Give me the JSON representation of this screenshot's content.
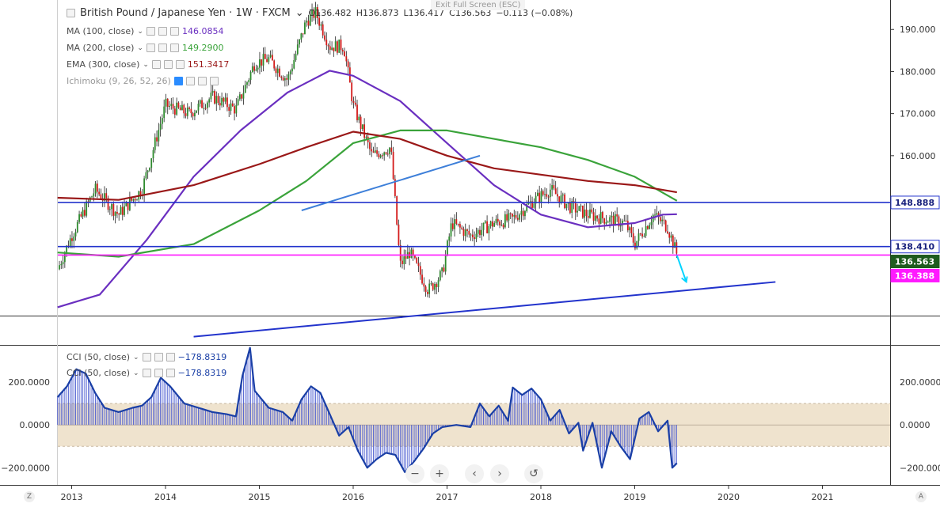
{
  "header": {
    "symbol": "British Pound / Japanese Yen · 1W · FXCM",
    "ohlc": [
      "O136.482",
      "H136.873",
      "L136.417",
      "C136.563",
      "−0.113 (−0.08%)"
    ],
    "exit_fullscreen": "Exit Full Screen (ESC)"
  },
  "indicators": [
    {
      "label": "MA (100, close)",
      "value": "146.0854",
      "color": "#6a2fc0"
    },
    {
      "label": "MA (200, close)",
      "value": "149.2900",
      "color": "#3aa33a"
    },
    {
      "label": "EMA (300, close)",
      "value": "151.3417",
      "color": "#9a1818"
    },
    {
      "label": "Ichimoku (9, 26, 52, 26)",
      "value": "",
      "color": "#888888"
    }
  ],
  "cci_legends": [
    {
      "label": "CCI (50, close)",
      "value": "−178.8319"
    },
    {
      "label": "CCI (50, close)",
      "value": "−178.8319"
    }
  ],
  "price_badges": [
    {
      "value": "148.888",
      "bg": "#ffffff",
      "fg": "#1a237e",
      "border": "#2233cc"
    },
    {
      "value": "138.410",
      "bg": "#ffffff",
      "fg": "#1a237e",
      "border": "#2233cc"
    },
    {
      "value": "136.563",
      "bg": "#1e5b1e",
      "fg": "#ffffff",
      "border": "#1e5b1e"
    },
    {
      "value": "136.388",
      "bg": "#ff19ff",
      "fg": "#ffffff",
      "border": "#ff19ff"
    }
  ],
  "nav": {
    "zoom_out": "−",
    "zoom_in": "+",
    "prev": "‹",
    "next": "›",
    "reset": "↺"
  },
  "corners": {
    "left": "Z",
    "right": "A"
  },
  "chart_data": [
    {
      "type": "candlestick",
      "title": "British Pound / Japanese Yen · 1W · FXCM",
      "x_ticks": [
        "2013",
        "2014",
        "2015",
        "2016",
        "2017",
        "2018",
        "2019",
        "2020",
        "2021"
      ],
      "y_ticks": [
        "190.000",
        "180.000",
        "170.000",
        "160.000",
        "138.410"
      ],
      "ylim": [
        122,
        197
      ],
      "close_path": [
        [
          2012.85,
          133
        ],
        [
          2013.0,
          141
        ],
        [
          2013.25,
          152
        ],
        [
          2013.5,
          146
        ],
        [
          2013.75,
          152
        ],
        [
          2014.0,
          172
        ],
        [
          2014.25,
          170
        ],
        [
          2014.5,
          174
        ],
        [
          2014.75,
          171
        ],
        [
          2014.95,
          182
        ],
        [
          2015.1,
          183
        ],
        [
          2015.3,
          178
        ],
        [
          2015.5,
          192
        ],
        [
          2015.6,
          194
        ],
        [
          2015.75,
          186
        ],
        [
          2015.9,
          186
        ],
        [
          2016.0,
          172
        ],
        [
          2016.2,
          160
        ],
        [
          2016.4,
          162
        ],
        [
          2016.5,
          134
        ],
        [
          2016.6,
          137
        ],
        [
          2016.8,
          128
        ],
        [
          2016.95,
          132
        ],
        [
          2017.05,
          144
        ],
        [
          2017.25,
          141
        ],
        [
          2017.5,
          144
        ],
        [
          2017.7,
          145
        ],
        [
          2017.9,
          149
        ],
        [
          2018.1,
          152
        ],
        [
          2018.3,
          148
        ],
        [
          2018.5,
          146
        ],
        [
          2018.7,
          145
        ],
        [
          2018.9,
          144
        ],
        [
          2019.0,
          139
        ],
        [
          2019.2,
          146
        ],
        [
          2019.35,
          143
        ],
        [
          2019.45,
          136.56
        ]
      ],
      "series": [
        {
          "name": "MA (100, close)",
          "color": "#6a2fc0",
          "points": [
            [
              2012.85,
              124
            ],
            [
              2013.3,
              127
            ],
            [
              2013.8,
              140
            ],
            [
              2014.3,
              155
            ],
            [
              2014.8,
              166
            ],
            [
              2015.3,
              175
            ],
            [
              2015.75,
              180.2
            ],
            [
              2016.0,
              179
            ],
            [
              2016.5,
              173
            ],
            [
              2017.0,
              163
            ],
            [
              2017.5,
              153
            ],
            [
              2018.0,
              146
            ],
            [
              2018.5,
              143
            ],
            [
              2019.0,
              144
            ],
            [
              2019.3,
              146
            ],
            [
              2019.45,
              146.1
            ]
          ]
        },
        {
          "name": "MA (200, close)",
          "color": "#3aa33a",
          "points": [
            [
              2012.85,
              137
            ],
            [
              2013.5,
              136
            ],
            [
              2014.3,
              139
            ],
            [
              2015.0,
              147
            ],
            [
              2015.5,
              154
            ],
            [
              2016.0,
              163
            ],
            [
              2016.5,
              166
            ],
            [
              2017.0,
              166
            ],
            [
              2017.5,
              164
            ],
            [
              2018.0,
              162
            ],
            [
              2018.5,
              159
            ],
            [
              2019.0,
              155
            ],
            [
              2019.45,
              149.3
            ]
          ]
        },
        {
          "name": "EMA (300, close)",
          "color": "#9a1818",
          "points": [
            [
              2012.85,
              150
            ],
            [
              2013.5,
              149.5
            ],
            [
              2014.3,
              153
            ],
            [
              2015.0,
              158
            ],
            [
              2015.5,
              162
            ],
            [
              2016.0,
              165.7
            ],
            [
              2016.5,
              164
            ],
            [
              2017.0,
              160
            ],
            [
              2017.5,
              157
            ],
            [
              2018.0,
              155.5
            ],
            [
              2018.5,
              154
            ],
            [
              2019.0,
              153
            ],
            [
              2019.45,
              151.3
            ]
          ]
        }
      ],
      "hlines": [
        {
          "y": 148.888,
          "color": "#2233cc"
        },
        {
          "y": 138.41,
          "color": "#2233cc"
        },
        {
          "y": 136.388,
          "color": "#ff19ff"
        }
      ],
      "trendlines": [
        {
          "from": [
            2014.3,
            117
          ],
          "to": [
            2020.5,
            130
          ],
          "color": "#2233cc"
        },
        {
          "from": [
            2015.45,
            147
          ],
          "to": [
            2017.35,
            160
          ],
          "color": "#3d7fd9"
        },
        {
          "from": [
            2019.45,
            136.3
          ],
          "to": [
            2019.55,
            130
          ],
          "color": "#00d4ff"
        }
      ]
    },
    {
      "type": "line",
      "title": "CCI (50, close)",
      "x_ticks": [
        "2013",
        "2014",
        "2015",
        "2016",
        "2017",
        "2018",
        "2019",
        "2020",
        "2021"
      ],
      "y_ticks": [
        "200.0000",
        "0.0000",
        "−200.0000"
      ],
      "ylim": [
        -280,
        370
      ],
      "band": [
        -100,
        100
      ],
      "series": [
        {
          "name": "CCI (50, close)",
          "color": "#1a3fa6",
          "points": [
            [
              2012.85,
              130
            ],
            [
              2012.95,
              180
            ],
            [
              2013.05,
              260
            ],
            [
              2013.15,
              240
            ],
            [
              2013.25,
              150
            ],
            [
              2013.35,
              80
            ],
            [
              2013.5,
              60
            ],
            [
              2013.65,
              80
            ],
            [
              2013.75,
              90
            ],
            [
              2013.85,
              130
            ],
            [
              2013.95,
              220
            ],
            [
              2014.05,
              180
            ],
            [
              2014.2,
              100
            ],
            [
              2014.35,
              80
            ],
            [
              2014.5,
              60
            ],
            [
              2014.65,
              50
            ],
            [
              2014.75,
              40
            ],
            [
              2014.82,
              230
            ],
            [
              2014.9,
              360
            ],
            [
              2014.95,
              160
            ],
            [
              2015.1,
              80
            ],
            [
              2015.25,
              60
            ],
            [
              2015.35,
              20
            ],
            [
              2015.45,
              120
            ],
            [
              2015.55,
              180
            ],
            [
              2015.65,
              150
            ],
            [
              2015.75,
              50
            ],
            [
              2015.85,
              -50
            ],
            [
              2015.95,
              -10
            ],
            [
              2016.05,
              -120
            ],
            [
              2016.15,
              -200
            ],
            [
              2016.25,
              -160
            ],
            [
              2016.35,
              -130
            ],
            [
              2016.45,
              -140
            ],
            [
              2016.55,
              -220
            ],
            [
              2016.65,
              -170
            ],
            [
              2016.75,
              -110
            ],
            [
              2016.85,
              -40
            ],
            [
              2016.95,
              -10
            ],
            [
              2017.1,
              0
            ],
            [
              2017.25,
              -10
            ],
            [
              2017.35,
              100
            ],
            [
              2017.45,
              40
            ],
            [
              2017.55,
              90
            ],
            [
              2017.65,
              20
            ],
            [
              2017.7,
              175
            ],
            [
              2017.8,
              140
            ],
            [
              2017.9,
              170
            ],
            [
              2018.0,
              120
            ],
            [
              2018.1,
              20
            ],
            [
              2018.2,
              70
            ],
            [
              2018.3,
              -40
            ],
            [
              2018.4,
              10
            ],
            [
              2018.45,
              -120
            ],
            [
              2018.55,
              10
            ],
            [
              2018.65,
              -200
            ],
            [
              2018.75,
              -30
            ],
            [
              2018.85,
              -100
            ],
            [
              2018.95,
              -160
            ],
            [
              2019.05,
              30
            ],
            [
              2019.15,
              60
            ],
            [
              2019.25,
              -30
            ],
            [
              2019.35,
              20
            ],
            [
              2019.4,
              -200
            ],
            [
              2019.45,
              -178.83
            ]
          ]
        }
      ]
    }
  ]
}
